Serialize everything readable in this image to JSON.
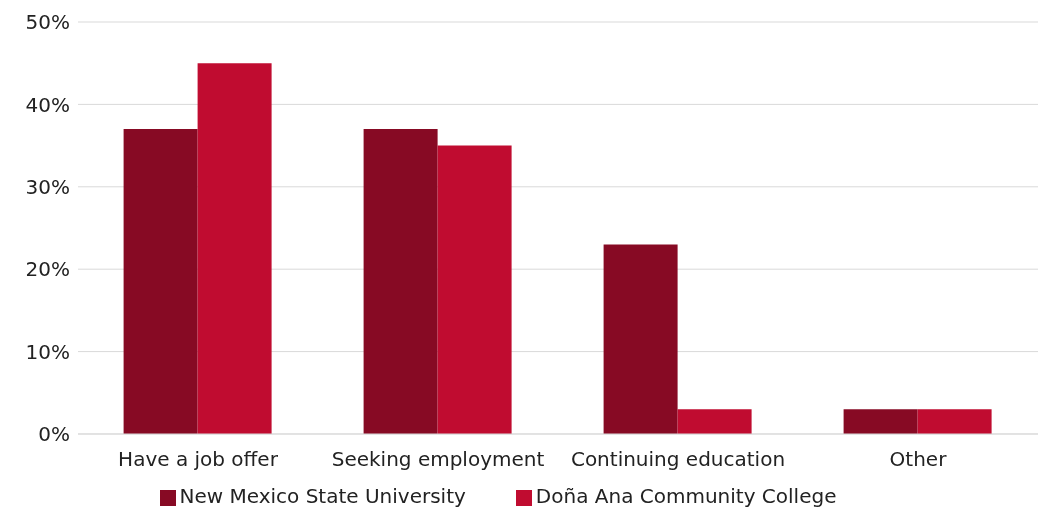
{
  "chart_data": {
    "type": "bar",
    "categories": [
      "Have a job offer",
      "Seeking employment",
      "Continuing education",
      "Other"
    ],
    "series": [
      {
        "name": "New Mexico State University",
        "color": "#870a24",
        "values": [
          37,
          37,
          23,
          3
        ]
      },
      {
        "name": "Doña Ana Community College",
        "color": "#c00c30",
        "values": [
          45,
          35,
          3,
          3
        ]
      }
    ],
    "ylim": [
      0,
      50
    ],
    "yticks": [
      {
        "value": 0,
        "label": "0%"
      },
      {
        "value": 10,
        "label": "10%"
      },
      {
        "value": 20,
        "label": "20%"
      },
      {
        "value": 30,
        "label": "30%"
      },
      {
        "value": 40,
        "label": "40%"
      },
      {
        "value": 50,
        "label": "50%"
      }
    ],
    "grid": "y",
    "legend": "bottom"
  }
}
